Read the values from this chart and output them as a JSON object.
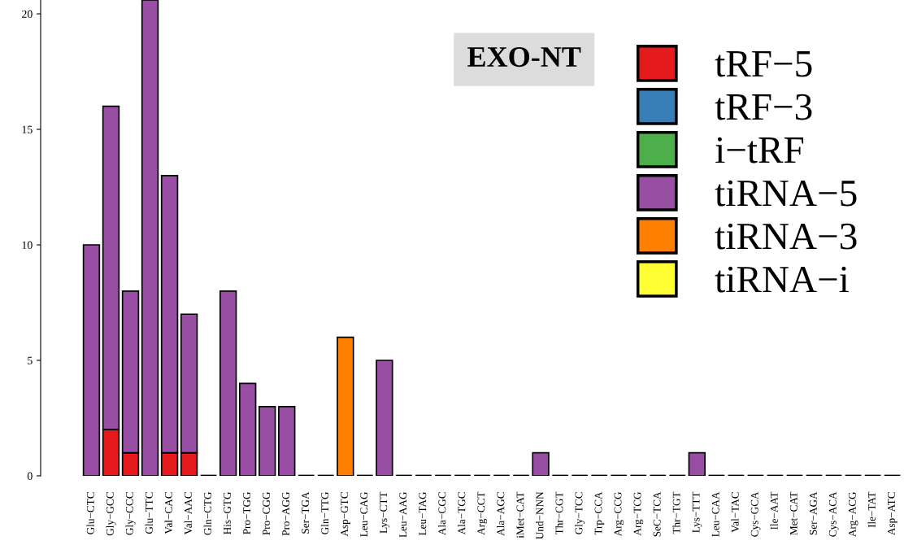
{
  "chart_data": {
    "type": "bar",
    "stacked": true,
    "title": "EXO-NT",
    "categories": [
      "Glu−CTC",
      "Gly−GCC",
      "Gly−CCC",
      "Glu−TTC",
      "Val−CAC",
      "Val−AAC",
      "Gln−CTG",
      "His−GTG",
      "Pro−TGG",
      "Pro−CGG",
      "Pro−AGG",
      "Ser−TGA",
      "Gln−TTG",
      "Asp−GTC",
      "Leu−CAG",
      "Lys−CTT",
      "Leu−AAG",
      "Leu−TAG",
      "Ala−CGC",
      "Ala−TGC",
      "Arg−CCT",
      "Ala−AGC",
      "iMet−CAT",
      "Und−NNN",
      "Thr−CGT",
      "Gly−TCC",
      "Trp−CCA",
      "Arg−CCG",
      "Arg−TCG",
      "SeC−TCA",
      "Thr−TGT",
      "Lys−TTT",
      "Leu−CAA",
      "Val−TAC",
      "Cys−GCA",
      "Ile−AAT",
      "Met−CAT",
      "Ser−AGA",
      "Cys−ACA",
      "Arg−ACG",
      "Ile−TAT",
      "Asp−ATC"
    ],
    "series": [
      {
        "name": "tRF−5",
        "color": "#e41a1c",
        "values": [
          0,
          2,
          1,
          0,
          1,
          1,
          0,
          0,
          0,
          0,
          0,
          0,
          0,
          0,
          0,
          0,
          0,
          0,
          0,
          0,
          0,
          0,
          0,
          0,
          0,
          0,
          0,
          0,
          0,
          0,
          0,
          0,
          0,
          0,
          0,
          0,
          0,
          0,
          0,
          0,
          0,
          0
        ]
      },
      {
        "name": "tRF−3",
        "color": "#377eb8",
        "values": [
          0,
          0,
          0,
          0,
          0,
          0,
          0,
          0,
          0,
          0,
          0,
          0,
          0,
          0,
          0,
          0,
          0,
          0,
          0,
          0,
          0,
          0,
          0,
          0,
          0,
          0,
          0,
          0,
          0,
          0,
          0,
          0,
          0,
          0,
          0,
          0,
          0,
          0,
          0,
          0,
          0,
          0
        ]
      },
      {
        "name": "i−tRF",
        "color": "#4daf4a",
        "values": [
          0,
          0,
          0,
          0,
          0,
          0,
          0,
          0,
          0,
          0,
          0,
          0,
          0,
          0,
          0,
          0,
          0,
          0,
          0,
          0,
          0,
          0,
          0,
          0,
          0,
          0,
          0,
          0,
          0,
          0,
          0,
          0,
          0,
          0,
          0,
          0,
          0,
          0,
          0,
          0,
          0,
          0
        ]
      },
      {
        "name": "tiRNA−5",
        "color": "#984ea3",
        "values": [
          10,
          14,
          7,
          20.6,
          12,
          6,
          0,
          8,
          4,
          3,
          3,
          0,
          0,
          0,
          0,
          5,
          0,
          0,
          0,
          0,
          0,
          0,
          0,
          1,
          0,
          0,
          0,
          0,
          0,
          0,
          0,
          1,
          0,
          0,
          0,
          0,
          0,
          0,
          0,
          0,
          0,
          0
        ]
      },
      {
        "name": "tiRNA−3",
        "color": "#ff7f00",
        "values": [
          0,
          0,
          0,
          0,
          0,
          0,
          0,
          0,
          0,
          0,
          0,
          0,
          0,
          6,
          0,
          0,
          0,
          0,
          0,
          0,
          0,
          0,
          0,
          0,
          0,
          0,
          0,
          0,
          0,
          0,
          0,
          0,
          0,
          0,
          0,
          0,
          0,
          0,
          0,
          0,
          0,
          0
        ]
      },
      {
        "name": "tiRNA−i",
        "color": "#ffff33",
        "values": [
          0,
          0,
          0,
          0,
          0,
          0,
          0,
          0,
          0,
          0,
          0,
          0,
          0,
          0,
          0,
          0,
          0,
          0,
          0,
          0,
          0,
          0,
          0,
          0,
          0,
          0,
          0,
          0,
          0,
          0,
          0,
          0,
          0,
          0,
          0,
          0,
          0,
          0,
          0,
          0,
          0,
          0
        ]
      }
    ],
    "ylim": [
      0,
      20.6
    ],
    "yticks": [
      0,
      5,
      10,
      15,
      20
    ],
    "grid": false,
    "legend": "top right"
  }
}
